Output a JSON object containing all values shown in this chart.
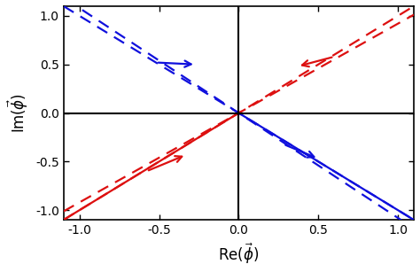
{
  "xlim": [
    -1.1,
    1.1
  ],
  "ylim": [
    -1.1,
    1.1
  ],
  "xticks": [
    -1.0,
    -0.5,
    0.0,
    0.5,
    1.0
  ],
  "yticks": [
    -1.0,
    -0.5,
    0.0,
    0.5,
    1.0
  ],
  "xlabel": "Re(\\vec{\\phi})",
  "ylabel": "Im(\\vec{\\phi})",
  "blue_color": "#1010DD",
  "red_color": "#DD1010",
  "line_width": 1.6,
  "figsize": [
    4.74,
    3.07
  ],
  "dpi": 100,
  "blue_slope": -1.0,
  "blue_slope2": -1.08,
  "red_slope": 1.0,
  "red_slope2": 0.92
}
